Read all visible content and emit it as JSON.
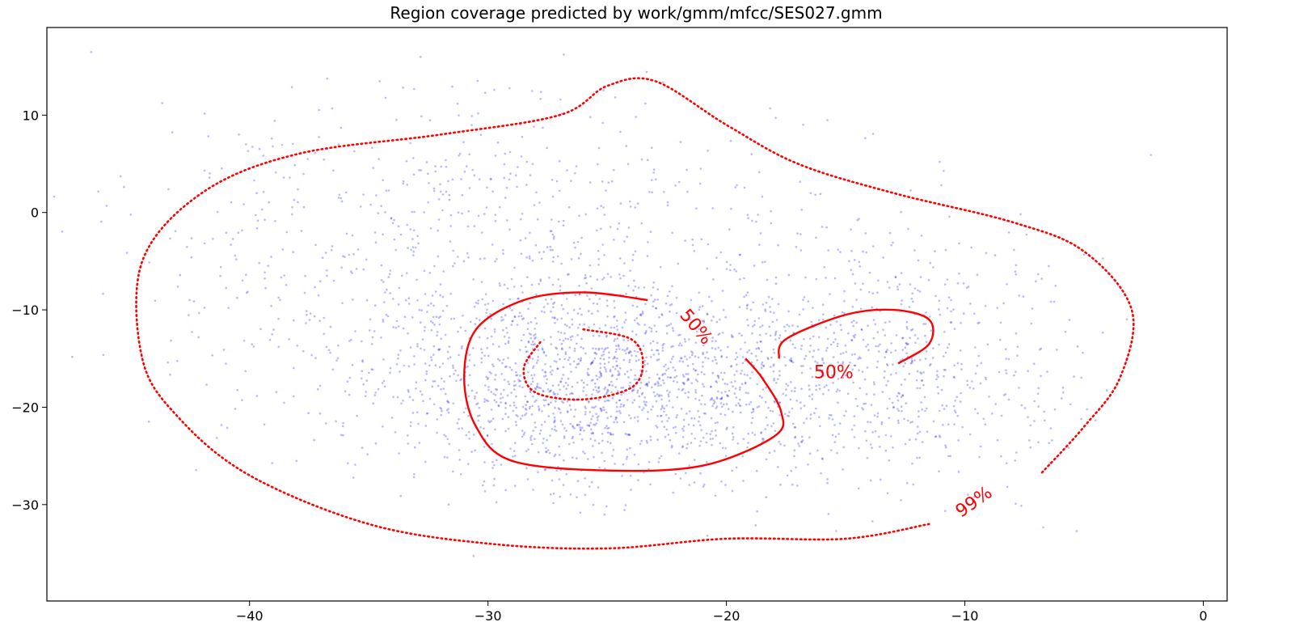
{
  "chart_data": {
    "type": "scatter",
    "title": "Region coverage predicted by work/gmm/mfcc/SES027.gmm",
    "xlabel": "",
    "ylabel": "",
    "xlim": [
      -48.5,
      1
    ],
    "ylim": [
      -39.9,
      19
    ],
    "xticks": [
      -40,
      -30,
      -20,
      -10,
      0
    ],
    "yticks": [
      10,
      0,
      -10,
      -20,
      -30
    ],
    "xtick_labels": [
      "−40",
      "−30",
      "−20",
      "−10",
      "0"
    ],
    "ytick_labels": [
      "10",
      "0",
      "−10",
      "−20",
      "−30"
    ],
    "grid": false,
    "legend": "none",
    "colors": {
      "points": "#0000ff",
      "contours": "#ff0000"
    },
    "scatter": {
      "point_count": 3000,
      "clusters": [
        {
          "cx": -25,
          "cy": -18,
          "sx": 5,
          "sy": 5,
          "weight": 0.5
        },
        {
          "cx": -13,
          "cy": -16,
          "sx": 4,
          "sy": 6,
          "weight": 0.2
        },
        {
          "cx": -30,
          "cy": -5,
          "sx": 8,
          "sy": 9,
          "weight": 0.3
        }
      ]
    },
    "contours": [
      {
        "label": "99%",
        "style": "dotted",
        "points": [
          [
            -11.5,
            -32
          ],
          [
            -15,
            -33.5
          ],
          [
            -20,
            -33.5
          ],
          [
            -25,
            -34.5
          ],
          [
            -30,
            -34
          ],
          [
            -35,
            -32
          ],
          [
            -40,
            -27
          ],
          [
            -43,
            -21
          ],
          [
            -44.5,
            -15
          ],
          [
            -44.5,
            -5
          ],
          [
            -42,
            2
          ],
          [
            -38,
            6
          ],
          [
            -32,
            8
          ],
          [
            -27,
            10
          ],
          [
            -25,
            13
          ],
          [
            -23,
            13.5
          ],
          [
            -20,
            9
          ],
          [
            -17,
            5
          ],
          [
            -13,
            2
          ],
          [
            -8,
            -1
          ],
          [
            -5,
            -4
          ],
          [
            -3,
            -10
          ],
          [
            -3.5,
            -17
          ],
          [
            -5,
            -22
          ],
          [
            -6.8,
            -26.8
          ]
        ]
      },
      {
        "label": "50%",
        "style": "solid",
        "points": [
          [
            -23.3,
            -9
          ],
          [
            -26,
            -8.2
          ],
          [
            -28.5,
            -9
          ],
          [
            -30.5,
            -12
          ],
          [
            -31,
            -17
          ],
          [
            -30.5,
            -22
          ],
          [
            -29,
            -25.5
          ],
          [
            -25,
            -26.5
          ],
          [
            -21,
            -26
          ],
          [
            -18,
            -23
          ],
          [
            -17.7,
            -20.5
          ],
          [
            -18.5,
            -17
          ],
          [
            -19.2,
            -15
          ]
        ]
      },
      {
        "label": "50%",
        "style": "solid",
        "points": [
          [
            -17.8,
            -15
          ],
          [
            -17.5,
            -13
          ],
          [
            -15,
            -10.5
          ],
          [
            -13,
            -10
          ],
          [
            -11.5,
            -11
          ],
          [
            -11.5,
            -13.5
          ],
          [
            -12.8,
            -15.5
          ]
        ]
      },
      {
        "label": "",
        "style": "dotted",
        "points": [
          [
            -26,
            -12
          ],
          [
            -24,
            -13
          ],
          [
            -23.5,
            -15.5
          ],
          [
            -24,
            -18
          ],
          [
            -26,
            -19.2
          ],
          [
            -28,
            -18.5
          ],
          [
            -28.5,
            -16
          ],
          [
            -27.8,
            -13.3
          ]
        ]
      }
    ],
    "contour_labels": [
      {
        "text": "50%",
        "x": -21.3,
        "y": -11.8,
        "rotation": 50,
        "color": "#ff0000"
      },
      {
        "text": "50%",
        "x": -15.5,
        "y": -16.5,
        "rotation": 0,
        "color": "#ff0000"
      },
      {
        "text": "99%",
        "x": -9.6,
        "y": -29.8,
        "rotation": -35,
        "color": "#ff0000"
      }
    ]
  }
}
